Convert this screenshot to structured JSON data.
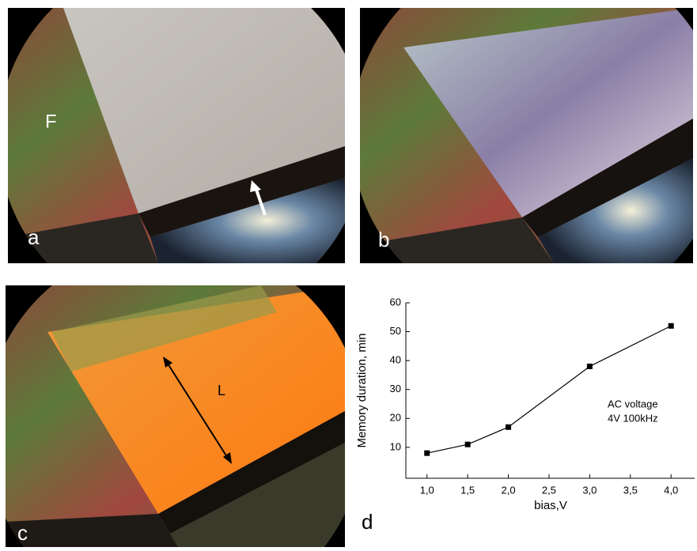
{
  "panels": [
    {
      "label": "a",
      "annotation": "F"
    },
    {
      "label": "b"
    },
    {
      "label": "c",
      "annotation": "L"
    }
  ],
  "chart_data": {
    "type": "line",
    "panel_label": "d",
    "x_label": "bias,V",
    "y_label": "Memory duration, min",
    "annotations": [
      "AC voltage",
      "4V 100kHz"
    ],
    "x": [
      1.0,
      1.5,
      2.0,
      3.0,
      4.0
    ],
    "series": [
      {
        "color": "#000000",
        "values": [
          8,
          11,
          17,
          38,
          52
        ]
      }
    ],
    "xlim": [
      0.74,
      4.29
    ],
    "xticks": [
      {
        "value": 1.0,
        "label": "1,0"
      },
      {
        "value": 1.5,
        "label": "1,5"
      },
      {
        "value": 2.0,
        "label": "2,0"
      },
      {
        "value": 2.5,
        "label": "2,5"
      },
      {
        "value": 3.0,
        "label": "3,0"
      },
      {
        "value": 3.5,
        "label": "3,5"
      },
      {
        "value": 4.0,
        "label": "4,0"
      }
    ],
    "ylim": [
      -0.7,
      60
    ],
    "yticks": [
      10,
      20,
      30,
      40,
      50,
      60
    ]
  }
}
